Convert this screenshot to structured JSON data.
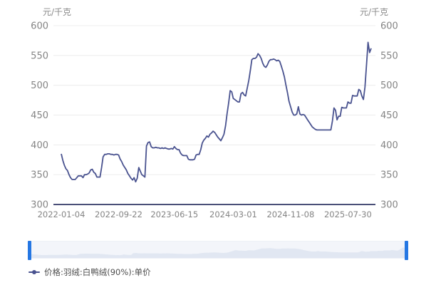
{
  "chart": {
    "unit_left": "元/千克",
    "unit_right": "元/千克"
  },
  "legend": {
    "label": "价格:羽绒:白鸭绒(90%):单价"
  },
  "colors": {
    "line": "#49528f",
    "axis_line": "#4a4f78",
    "grid": "#ececec",
    "tick_label": "#848484",
    "legend_text": "#4d4d4d",
    "navigator_bg": "#f3f5fa",
    "navigator_fill": "#e1e7f2",
    "navigator_handle": "#2577e3"
  },
  "chart_data": {
    "type": "line",
    "title": "",
    "ylabel": "元/千克",
    "xlabel": "",
    "ylim": [
      300,
      600
    ],
    "y_ticks": [
      300,
      350,
      400,
      450,
      500,
      550,
      600
    ],
    "grid": true,
    "legend_position": "bottom-left",
    "x_tick_labels": [
      "2022-01-04",
      "2022-09-22",
      "2023-06-15",
      "2024-03-01",
      "2024-11-08",
      "2025-07-30"
    ],
    "x_tick_indices": [
      0,
      37,
      73,
      111,
      148,
      185
    ],
    "series": [
      {
        "name": "价格:羽绒:白鸭绒(90%):单价",
        "values": [
          385,
          374,
          366,
          360,
          357,
          350,
          345,
          342,
          342,
          342,
          345,
          348,
          348,
          348,
          345,
          350,
          350,
          351,
          353,
          358,
          359,
          354,
          352,
          346,
          346,
          346,
          362,
          380,
          384,
          384,
          385,
          385,
          384,
          384,
          383,
          384,
          384,
          383,
          376,
          372,
          366,
          362,
          358,
          352,
          348,
          344,
          341,
          345,
          338,
          344,
          362,
          356,
          350,
          348,
          346,
          398,
          404,
          405,
          397,
          395,
          395,
          396,
          395,
          395,
          394,
          395,
          394,
          395,
          394,
          393,
          393,
          394,
          393,
          397,
          394,
          392,
          392,
          386,
          383,
          382,
          382,
          382,
          376,
          375,
          375,
          375,
          376,
          383,
          384,
          384,
          392,
          403,
          408,
          411,
          415,
          413,
          418,
          420,
          423,
          421,
          417,
          413,
          410,
          407,
          412,
          418,
          432,
          452,
          470,
          491,
          489,
          478,
          476,
          474,
          472,
          472,
          486,
          488,
          484,
          482,
          495,
          508,
          525,
          543,
          545,
          545,
          547,
          553,
          550,
          545,
          537,
          532,
          530,
          534,
          540,
          543,
          543,
          544,
          543,
          541,
          542,
          540,
          532,
          524,
          514,
          500,
          487,
          473,
          464,
          455,
          450,
          450,
          452,
          464,
          452,
          450,
          451,
          450,
          446,
          442,
          438,
          434,
          430,
          428,
          426,
          425,
          425,
          425,
          425,
          425,
          425,
          425,
          425,
          425,
          425,
          440,
          462,
          458,
          442,
          448,
          448,
          463,
          462,
          462,
          462,
          472,
          470,
          470,
          483,
          482,
          482,
          482,
          493,
          491,
          482,
          476,
          497,
          535,
          572,
          555,
          562
        ]
      }
    ]
  }
}
